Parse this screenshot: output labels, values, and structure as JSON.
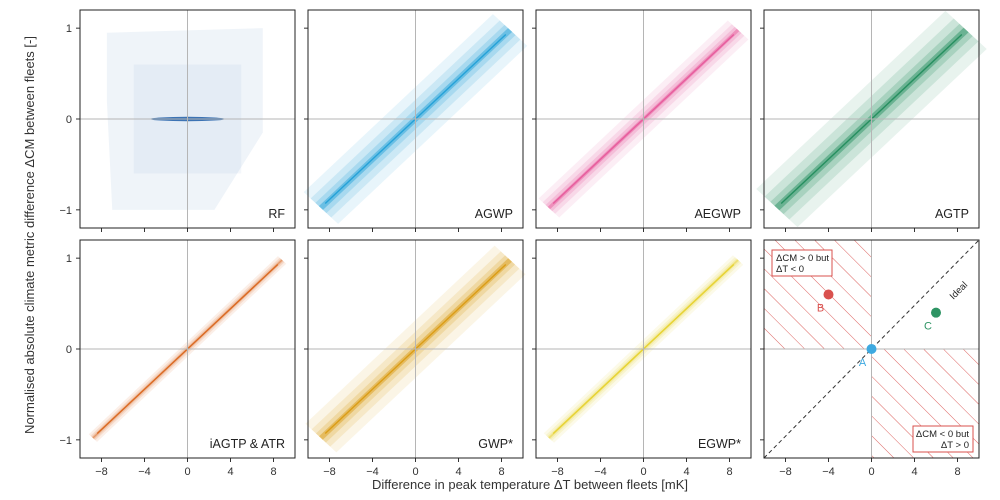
{
  "chart_data": {
    "type": "scatter",
    "xlabel": "Difference in peak temperature ΔT between fleets [mK]",
    "ylabel": "Normalised absolute climate metric difference ΔCM between fleets [-]",
    "xlim": [
      -10,
      10
    ],
    "ylim": [
      -1.2,
      1.2
    ],
    "xticks": [
      -8,
      -4,
      0,
      4,
      8
    ],
    "yticks": [
      -1,
      0,
      1
    ],
    "grid": false,
    "panels": [
      {
        "label": "RF",
        "color": "#1f5ea8",
        "shape": "rect"
      },
      {
        "label": "AGWP",
        "color": "#1e9fd6",
        "shape": "band",
        "halfwidth": 0.5
      },
      {
        "label": "AEGWP",
        "color": "#e6569a",
        "shape": "band",
        "halfwidth": 0.3
      },
      {
        "label": "AGTP",
        "color": "#1f8b5a",
        "shape": "band",
        "halfwidth": 0.6
      },
      {
        "label": "iAGTP & ATR",
        "color": "#d9651c",
        "shape": "band",
        "halfwidth": 0.12
      },
      {
        "label": "GWP*",
        "color": "#d99a0e",
        "shape": "band",
        "halfwidth": 0.45
      },
      {
        "label": "EGWP*",
        "color": "#e6d12c",
        "shape": "band",
        "halfwidth": 0.15
      }
    ],
    "legend_panel": {
      "ideal_label": "Ideal",
      "box_top": [
        "ΔCM > 0 but",
        "ΔT < 0"
      ],
      "box_bottom": [
        "ΔCM < 0 but",
        "ΔT > 0"
      ],
      "hatch_color": "#d9514e",
      "points": [
        {
          "label": "A",
          "x": 0,
          "y": 0,
          "color": "#3ea9e0"
        },
        {
          "label": "B",
          "x": -4,
          "y": 0.6,
          "color": "#d9514e"
        },
        {
          "label": "C",
          "x": 6,
          "y": 0.4,
          "color": "#2e9464"
        }
      ]
    }
  }
}
